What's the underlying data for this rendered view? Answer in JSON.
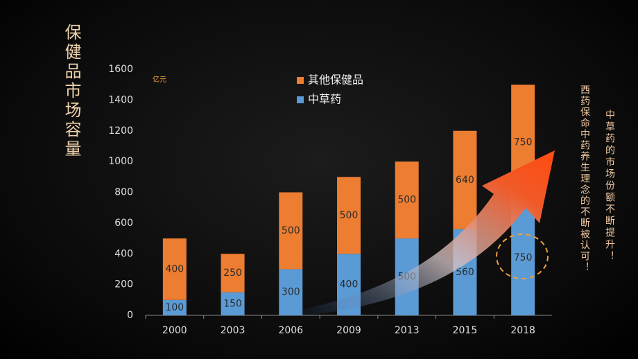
{
  "chart_data": {
    "type": "stacked-bar",
    "title": "保健品市场容量",
    "unit": "亿元",
    "categories": [
      "2000",
      "2003",
      "2006",
      "2009",
      "2013",
      "2015",
      "2018"
    ],
    "series": [
      {
        "name": "中草药",
        "color": "#5b9bd5",
        "values": [
          100,
          150,
          300,
          400,
          500,
          560,
          750
        ]
      },
      {
        "name": "其他保健品",
        "color": "#ed7d31",
        "values": [
          400,
          250,
          500,
          500,
          500,
          640,
          750
        ]
      }
    ],
    "ylim": [
      0,
      1600
    ],
    "yticks": [
      0,
      200,
      400,
      600,
      800,
      1000,
      1200,
      1400,
      1600
    ],
    "annotations": [
      "西药保命中药养生理念的不断被认可！",
      "中草药的市场份额不断提升！"
    ]
  }
}
